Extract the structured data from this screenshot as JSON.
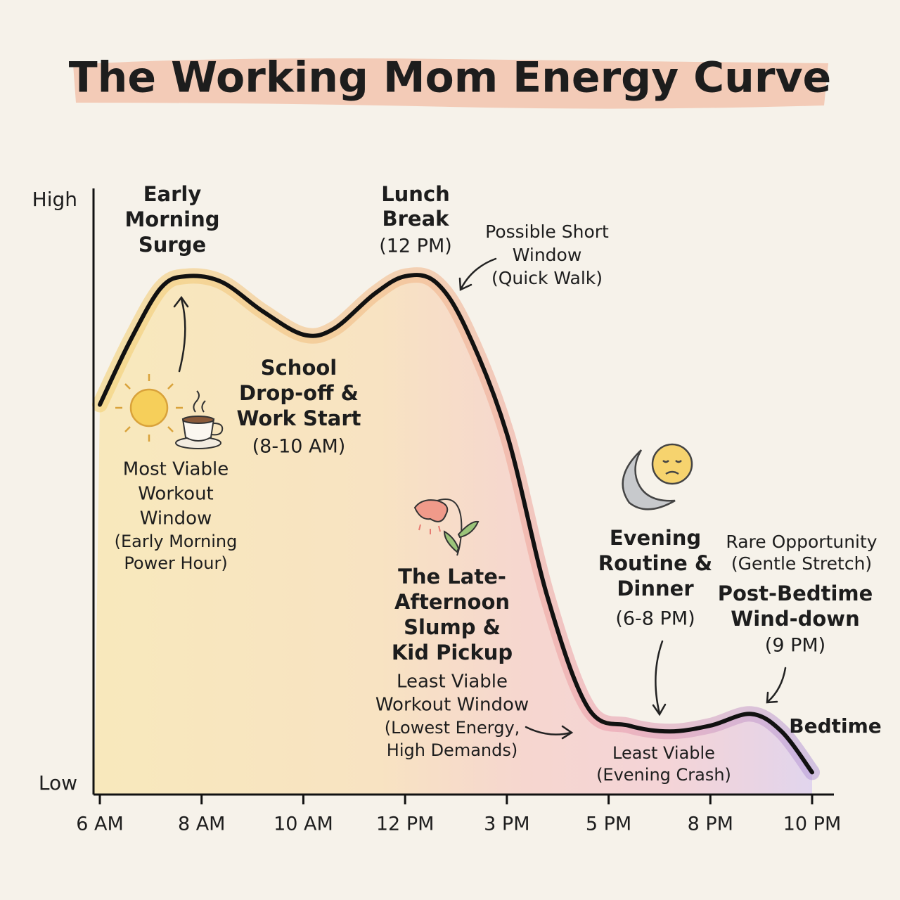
{
  "chart_data": {
    "type": "line",
    "title": "The Working Mom Energy Curve",
    "x": [
      0,
      0.3,
      0.6,
      0.85,
      1.2,
      1.6,
      2.0,
      2.3,
      2.7,
      3.0,
      3.3,
      3.6,
      4.0,
      4.4,
      4.8,
      5.2,
      5.6,
      6.0,
      6.4,
      6.7,
      7.0
    ],
    "values": [
      65,
      76,
      85,
      87,
      86,
      81,
      77,
      78,
      84,
      87,
      86,
      78,
      60,
      32,
      13,
      10,
      9,
      10,
      12,
      9,
      2
    ],
    "color": "#111111",
    "xlim": [
      0,
      7
    ],
    "xticks": [
      {
        "value": 0,
        "label": "6 AM"
      },
      {
        "value": 1,
        "label": "8 AM"
      },
      {
        "value": 2,
        "label": "10 AM"
      },
      {
        "value": 3,
        "label": "12 PM"
      },
      {
        "value": 4,
        "label": "3 PM"
      },
      {
        "value": 5,
        "label": "5 PM"
      },
      {
        "value": 6,
        "label": "8 PM"
      },
      {
        "value": 7,
        "label": "10 PM"
      }
    ],
    "ylim": [
      0,
      100
    ],
    "yticks": [
      {
        "value": 0,
        "label": "Low"
      },
      {
        "value": 100,
        "label": "High"
      }
    ],
    "grid": false,
    "annotations": [
      {
        "lines": [
          "Early",
          "Morning",
          "Surge"
        ]
      },
      {
        "lines": [
          "Lunch",
          "Break"
        ]
      },
      {
        "lines": [
          "(12 PM)"
        ]
      },
      {
        "lines": [
          "Possible Short",
          "Window",
          "(Quick Walk)"
        ]
      },
      {
        "lines": [
          "School",
          "Drop-off &",
          "Work Start"
        ]
      },
      {
        "lines": [
          "(8-10 AM)"
        ]
      },
      {
        "lines": [
          "Most Viable",
          "Workout",
          "Window"
        ]
      },
      {
        "lines": [
          "(Early Morning",
          "Power Hour)"
        ]
      },
      {
        "lines": [
          "The Late-",
          "Afternoon",
          "Slump &",
          "Kid Pickup"
        ]
      },
      {
        "lines": [
          "Least Viable",
          "Workout Window"
        ]
      },
      {
        "lines": [
          "(Lowest Energy,",
          "High Demands)"
        ]
      },
      {
        "lines": [
          "Evening",
          "Routine &",
          "Dinner"
        ]
      },
      {
        "lines": [
          "(6-8 PM)"
        ]
      },
      {
        "lines": [
          "Rare Opportunity",
          "(Gentle Stretch)"
        ]
      },
      {
        "lines": [
          "Post-Bedtime",
          "Wind-down"
        ]
      },
      {
        "lines": [
          "(9 PM)"
        ]
      },
      {
        "lines": [
          "Bedtime"
        ]
      },
      {
        "lines": [
          "Least Viable",
          "(Evening Crash)"
        ]
      }
    ]
  }
}
